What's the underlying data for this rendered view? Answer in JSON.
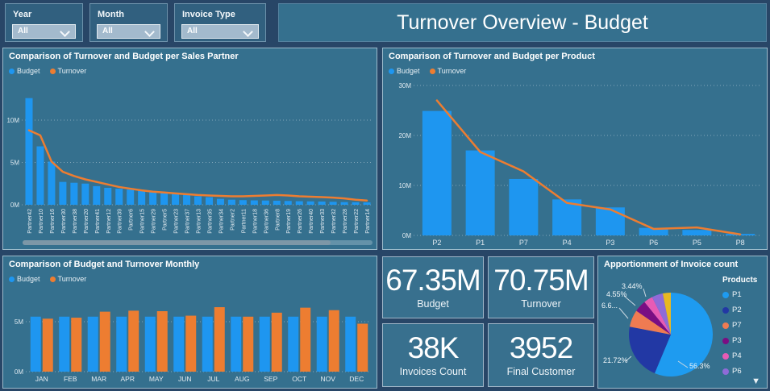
{
  "title_bar": {
    "title": "Turnover Overview - Budget"
  },
  "filters": [
    {
      "label": "Year",
      "value": "All"
    },
    {
      "label": "Month",
      "value": "All"
    },
    {
      "label": "Invoice Type",
      "value": "All"
    }
  ],
  "kpis": [
    {
      "value": "67.35M",
      "label": "Budget"
    },
    {
      "value": "70.75M",
      "label": "Turnover"
    },
    {
      "value": "38K",
      "label": "Invoices Count"
    },
    {
      "value": "3952",
      "label": "Final Customer"
    }
  ],
  "colors": {
    "budget_blue": "#1e96f0",
    "turnover_orange": "#ed7d31",
    "panel": "#35708e",
    "page": "#284667"
  },
  "chart_data": [
    {
      "type": "bar",
      "title": "Comparison of Turnover and Budget per Sales Partner",
      "categories": [
        "Partner42",
        "Partner10",
        "Partner16",
        "Partner30",
        "Partner38",
        "Partner20",
        "Partner41",
        "Partner12",
        "Partner39",
        "Partner6",
        "Partner15",
        "Partner29",
        "Partner5",
        "Partner23",
        "Partner37",
        "Partner13",
        "Partner35",
        "Partner34",
        "Partner2",
        "Partner11",
        "Partner18",
        "Partner36",
        "Partner8",
        "Partner19",
        "Partner26",
        "Partner40",
        "Partner33",
        "Partner32",
        "Partner28",
        "Partner22",
        "Partner14"
      ],
      "series": [
        {
          "name": "Budget",
          "kind": "bar",
          "color": "#1e96f0",
          "values": [
            12.6,
            6.9,
            5.1,
            2.7,
            2.6,
            2.5,
            2.2,
            2.0,
            1.9,
            1.8,
            1.7,
            1.6,
            1.5,
            1.4,
            1.3,
            1.0,
            0.9,
            0.7,
            0.6,
            0.55,
            0.52,
            0.5,
            0.48,
            0.45,
            0.42,
            0.4,
            0.38,
            0.35,
            0.32,
            0.3,
            0.28
          ]
        },
        {
          "name": "Turnover",
          "kind": "line",
          "color": "#ed7d31",
          "values": [
            8.8,
            8.2,
            5.1,
            3.9,
            3.4,
            3.0,
            2.7,
            2.4,
            2.1,
            1.9,
            1.7,
            1.55,
            1.45,
            1.35,
            1.25,
            1.15,
            1.1,
            1.05,
            1.0,
            1.0,
            1.05,
            1.1,
            1.15,
            1.1,
            1.0,
            0.95,
            0.9,
            0.85,
            0.75,
            0.6,
            0.5
          ]
        }
      ],
      "ylabel": "",
      "xlabel": "",
      "ylim": [
        0,
        13
      ],
      "yticks": [
        "0M",
        "5M",
        "10M"
      ]
    },
    {
      "type": "bar",
      "title": "Comparison of Turnover and Budget per Product",
      "categories": [
        "P2",
        "P1",
        "P7",
        "P4",
        "P3",
        "P6",
        "P5",
        "P8"
      ],
      "series": [
        {
          "name": "Budget",
          "kind": "bar",
          "color": "#1e96f0",
          "values": [
            24.9,
            17.0,
            11.3,
            7.2,
            5.6,
            1.5,
            1.1,
            0.3
          ]
        },
        {
          "name": "Turnover",
          "kind": "line",
          "color": "#ed7d31",
          "values": [
            27.0,
            16.7,
            12.8,
            6.5,
            5.2,
            1.3,
            1.6,
            0.2
          ]
        }
      ],
      "ylabel": "",
      "xlabel": "",
      "ylim": [
        0,
        30
      ],
      "yticks": [
        "0M",
        "10M",
        "20M",
        "30M"
      ]
    },
    {
      "type": "bar",
      "title": "Comparison of Budget and Turnover Monthly",
      "categories": [
        "JAN",
        "FEB",
        "MAR",
        "APR",
        "MAY",
        "JUN",
        "JUL",
        "AUG",
        "SEP",
        "OCT",
        "NOV",
        "DEC"
      ],
      "series": [
        {
          "name": "Budget",
          "kind": "bar",
          "color": "#1e96f0",
          "values": [
            5.5,
            5.5,
            5.5,
            5.5,
            5.5,
            5.5,
            5.5,
            5.5,
            5.5,
            5.5,
            5.5,
            5.5
          ]
        },
        {
          "name": "Turnover",
          "kind": "bar",
          "color": "#ed7d31",
          "values": [
            5.3,
            5.4,
            6.0,
            6.1,
            6.05,
            5.6,
            6.45,
            5.5,
            5.9,
            6.4,
            6.15,
            4.8
          ]
        }
      ],
      "ylabel": "",
      "xlabel": "",
      "ylim": [
        0,
        7
      ],
      "yticks": [
        "0M",
        "5M"
      ]
    },
    {
      "type": "pie",
      "title": "Apportionment of Invoice count",
      "legend_title": "Products",
      "slices": [
        {
          "name": "P1",
          "pct": 56.3,
          "label": "56.3%",
          "color": "#1e9bf0"
        },
        {
          "name": "P2",
          "pct": 21.72,
          "label": "21.72%",
          "color": "#2238a4"
        },
        {
          "name": "P7",
          "pct": 6.6,
          "label": "6.6...",
          "color": "#ef7b52"
        },
        {
          "name": "P3",
          "pct": 4.55,
          "label": "4.55%",
          "color": "#7a0e83"
        },
        {
          "name": "P4",
          "pct": 3.44,
          "label": "3.44%",
          "color": "#e75bb5"
        },
        {
          "name": "P6",
          "pct": 4.3,
          "label": "",
          "color": "#8f6bd8"
        },
        {
          "name": "",
          "pct": 3.09,
          "label": "",
          "color": "#e8b821"
        }
      ]
    }
  ]
}
